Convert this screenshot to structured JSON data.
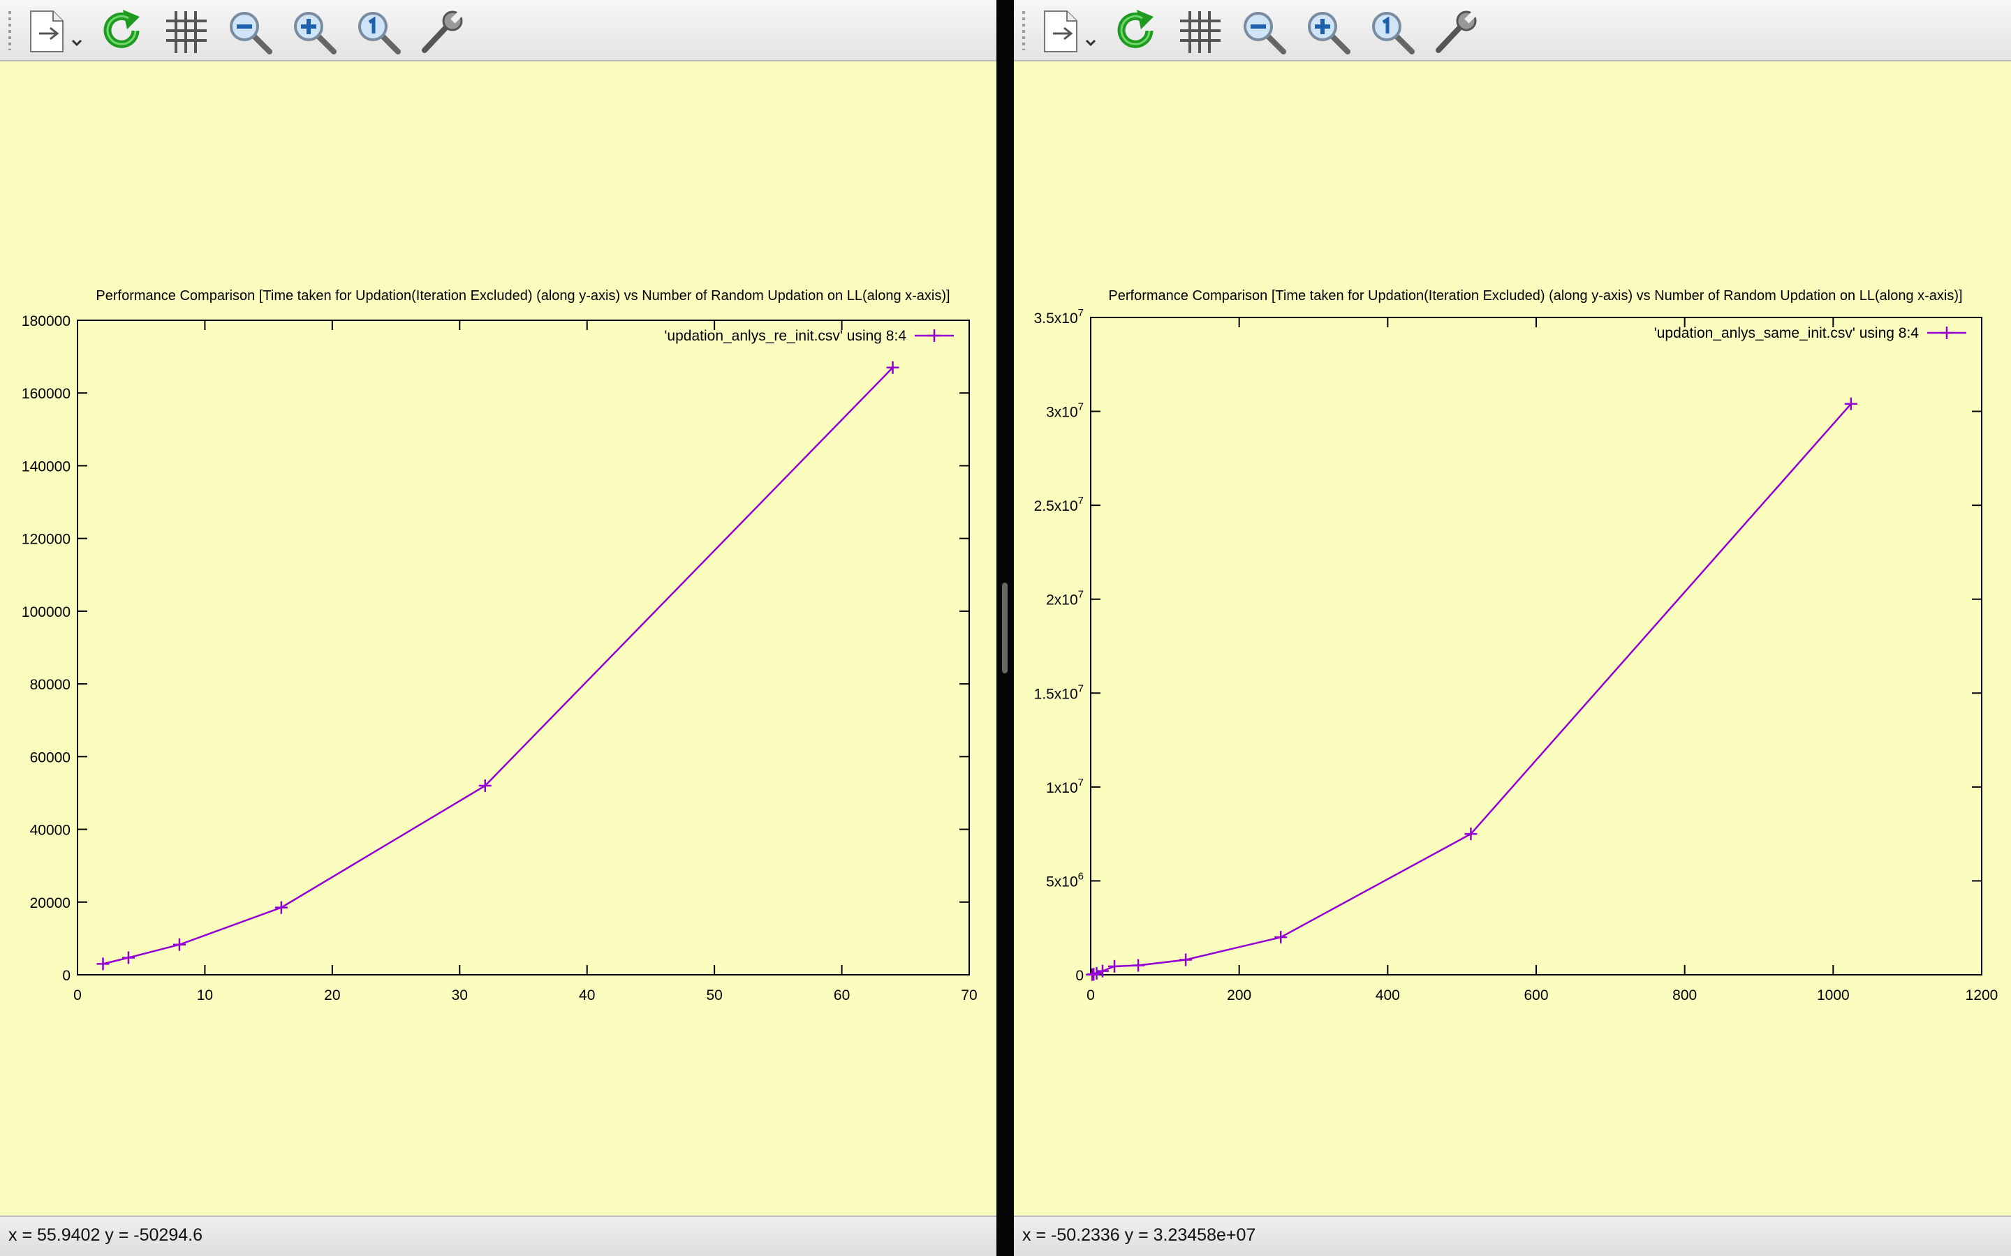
{
  "colors": {
    "background": "#fbfdbe",
    "series": "#9400d3",
    "axis": "#000000"
  },
  "toolbar_icons": [
    "export-icon",
    "replot-icon",
    "grid-icon",
    "zoom-out-icon",
    "zoom-in-icon",
    "zoom-reset-icon",
    "settings-wrench-icon"
  ],
  "left": {
    "status": "x = 55.9402 y = -50294.6"
  },
  "right": {
    "status": "x = -50.2336 y = 3.23458e+07"
  },
  "chart_data": [
    {
      "type": "line",
      "title": "Performance Comparison [Time taken for Updation(Iteration Excluded) (along y-axis) vs Number of Random Updation on LL(along x-axis)]",
      "xlim": [
        0,
        70
      ],
      "ylim": [
        0,
        180000
      ],
      "x_ticks": [
        "0",
        "10",
        "20",
        "30",
        "40",
        "50",
        "60",
        "70"
      ],
      "y_ticks": [
        "0",
        "20000",
        "40000",
        "60000",
        "80000",
        "100000",
        "120000",
        "140000",
        "160000",
        "180000"
      ],
      "grid": false,
      "legend_position": "top-right",
      "series": [
        {
          "name": "'updation_anlys_re_init.csv' using 8:4",
          "x": [
            2,
            4,
            8,
            16,
            32,
            64
          ],
          "y": [
            3000,
            4700,
            8300,
            18500,
            52000,
            167000
          ]
        }
      ]
    },
    {
      "type": "line",
      "title": "Performance Comparison [Time taken for Updation(Iteration Excluded) (along y-axis) vs Number of Random Updation on LL(along x-axis)]",
      "xlim": [
        0,
        1200
      ],
      "ylim": [
        0,
        35000000
      ],
      "x_ticks": [
        "0",
        "200",
        "400",
        "600",
        "800",
        "1000",
        "1200"
      ],
      "y_ticks": [
        {
          "base": "0",
          "exp": ""
        },
        {
          "base": "5x10",
          "exp": "6"
        },
        {
          "base": "1x10",
          "exp": "7"
        },
        {
          "base": "1.5x10",
          "exp": "7"
        },
        {
          "base": "2x10",
          "exp": "7"
        },
        {
          "base": "2.5x10",
          "exp": "7"
        },
        {
          "base": "3x10",
          "exp": "7"
        },
        {
          "base": "3.5x10",
          "exp": "7"
        }
      ],
      "grid": false,
      "legend_position": "top-right",
      "series": [
        {
          "name": "'updation_anlys_same_init.csv' using 8:4",
          "x": [
            2,
            4,
            8,
            16,
            32,
            64,
            128,
            256,
            512,
            1024
          ],
          "y": [
            10000,
            30000,
            80000,
            200000,
            450000,
            500000,
            800000,
            2000000,
            7500000,
            30400000
          ]
        }
      ]
    }
  ]
}
